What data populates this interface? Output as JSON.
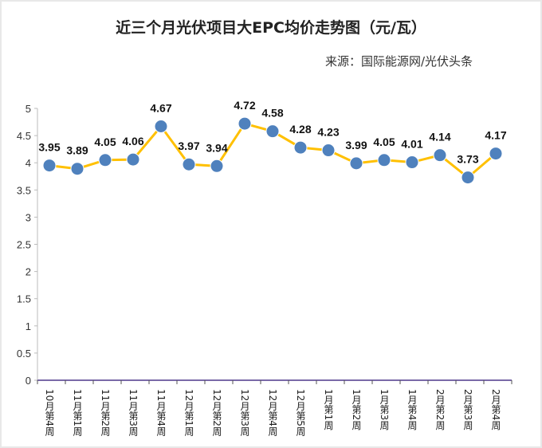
{
  "chart_data": {
    "type": "line",
    "title": "近三个月光伏项目大EPC均价走势图（元/瓦）",
    "subtitle": "来源：国际能源网/光伏头条",
    "categories": [
      "10月第4周",
      "11月第1周",
      "11月第2周",
      "11月第3周",
      "11月第4周",
      "12月第1周",
      "12月第2周",
      "12月第3周",
      "12月第4周",
      "12月第5周",
      "1月第1周",
      "1月第2周",
      "1月第3周",
      "1月第4周",
      "2月第2周",
      "2月第3周",
      "2月第4周"
    ],
    "values": [
      3.95,
      3.89,
      4.05,
      4.06,
      4.67,
      3.97,
      3.94,
      4.72,
      4.58,
      4.28,
      4.23,
      3.99,
      4.05,
      4.01,
      4.14,
      3.73,
      4.17
    ],
    "labels": [
      "3.95",
      "3.89",
      "4.05",
      "4.06",
      "4.67",
      "3.97",
      "3.94",
      "4.72",
      "4.58",
      "4.28",
      "4.23",
      "3.99",
      "4.05",
      "4.01",
      "4.14",
      "3.73",
      "4.17"
    ],
    "yticks": [
      "0",
      "0.5",
      "1",
      "1.5",
      "2",
      "2.5",
      "3",
      "3.5",
      "4",
      "4.5",
      "5"
    ],
    "ylim": [
      0,
      5
    ],
    "xlabel": "",
    "ylabel": "",
    "grid": false,
    "colors": {
      "line": "#ffc000",
      "marker": "#4f81bd",
      "axis": "#7a6aa8"
    }
  }
}
